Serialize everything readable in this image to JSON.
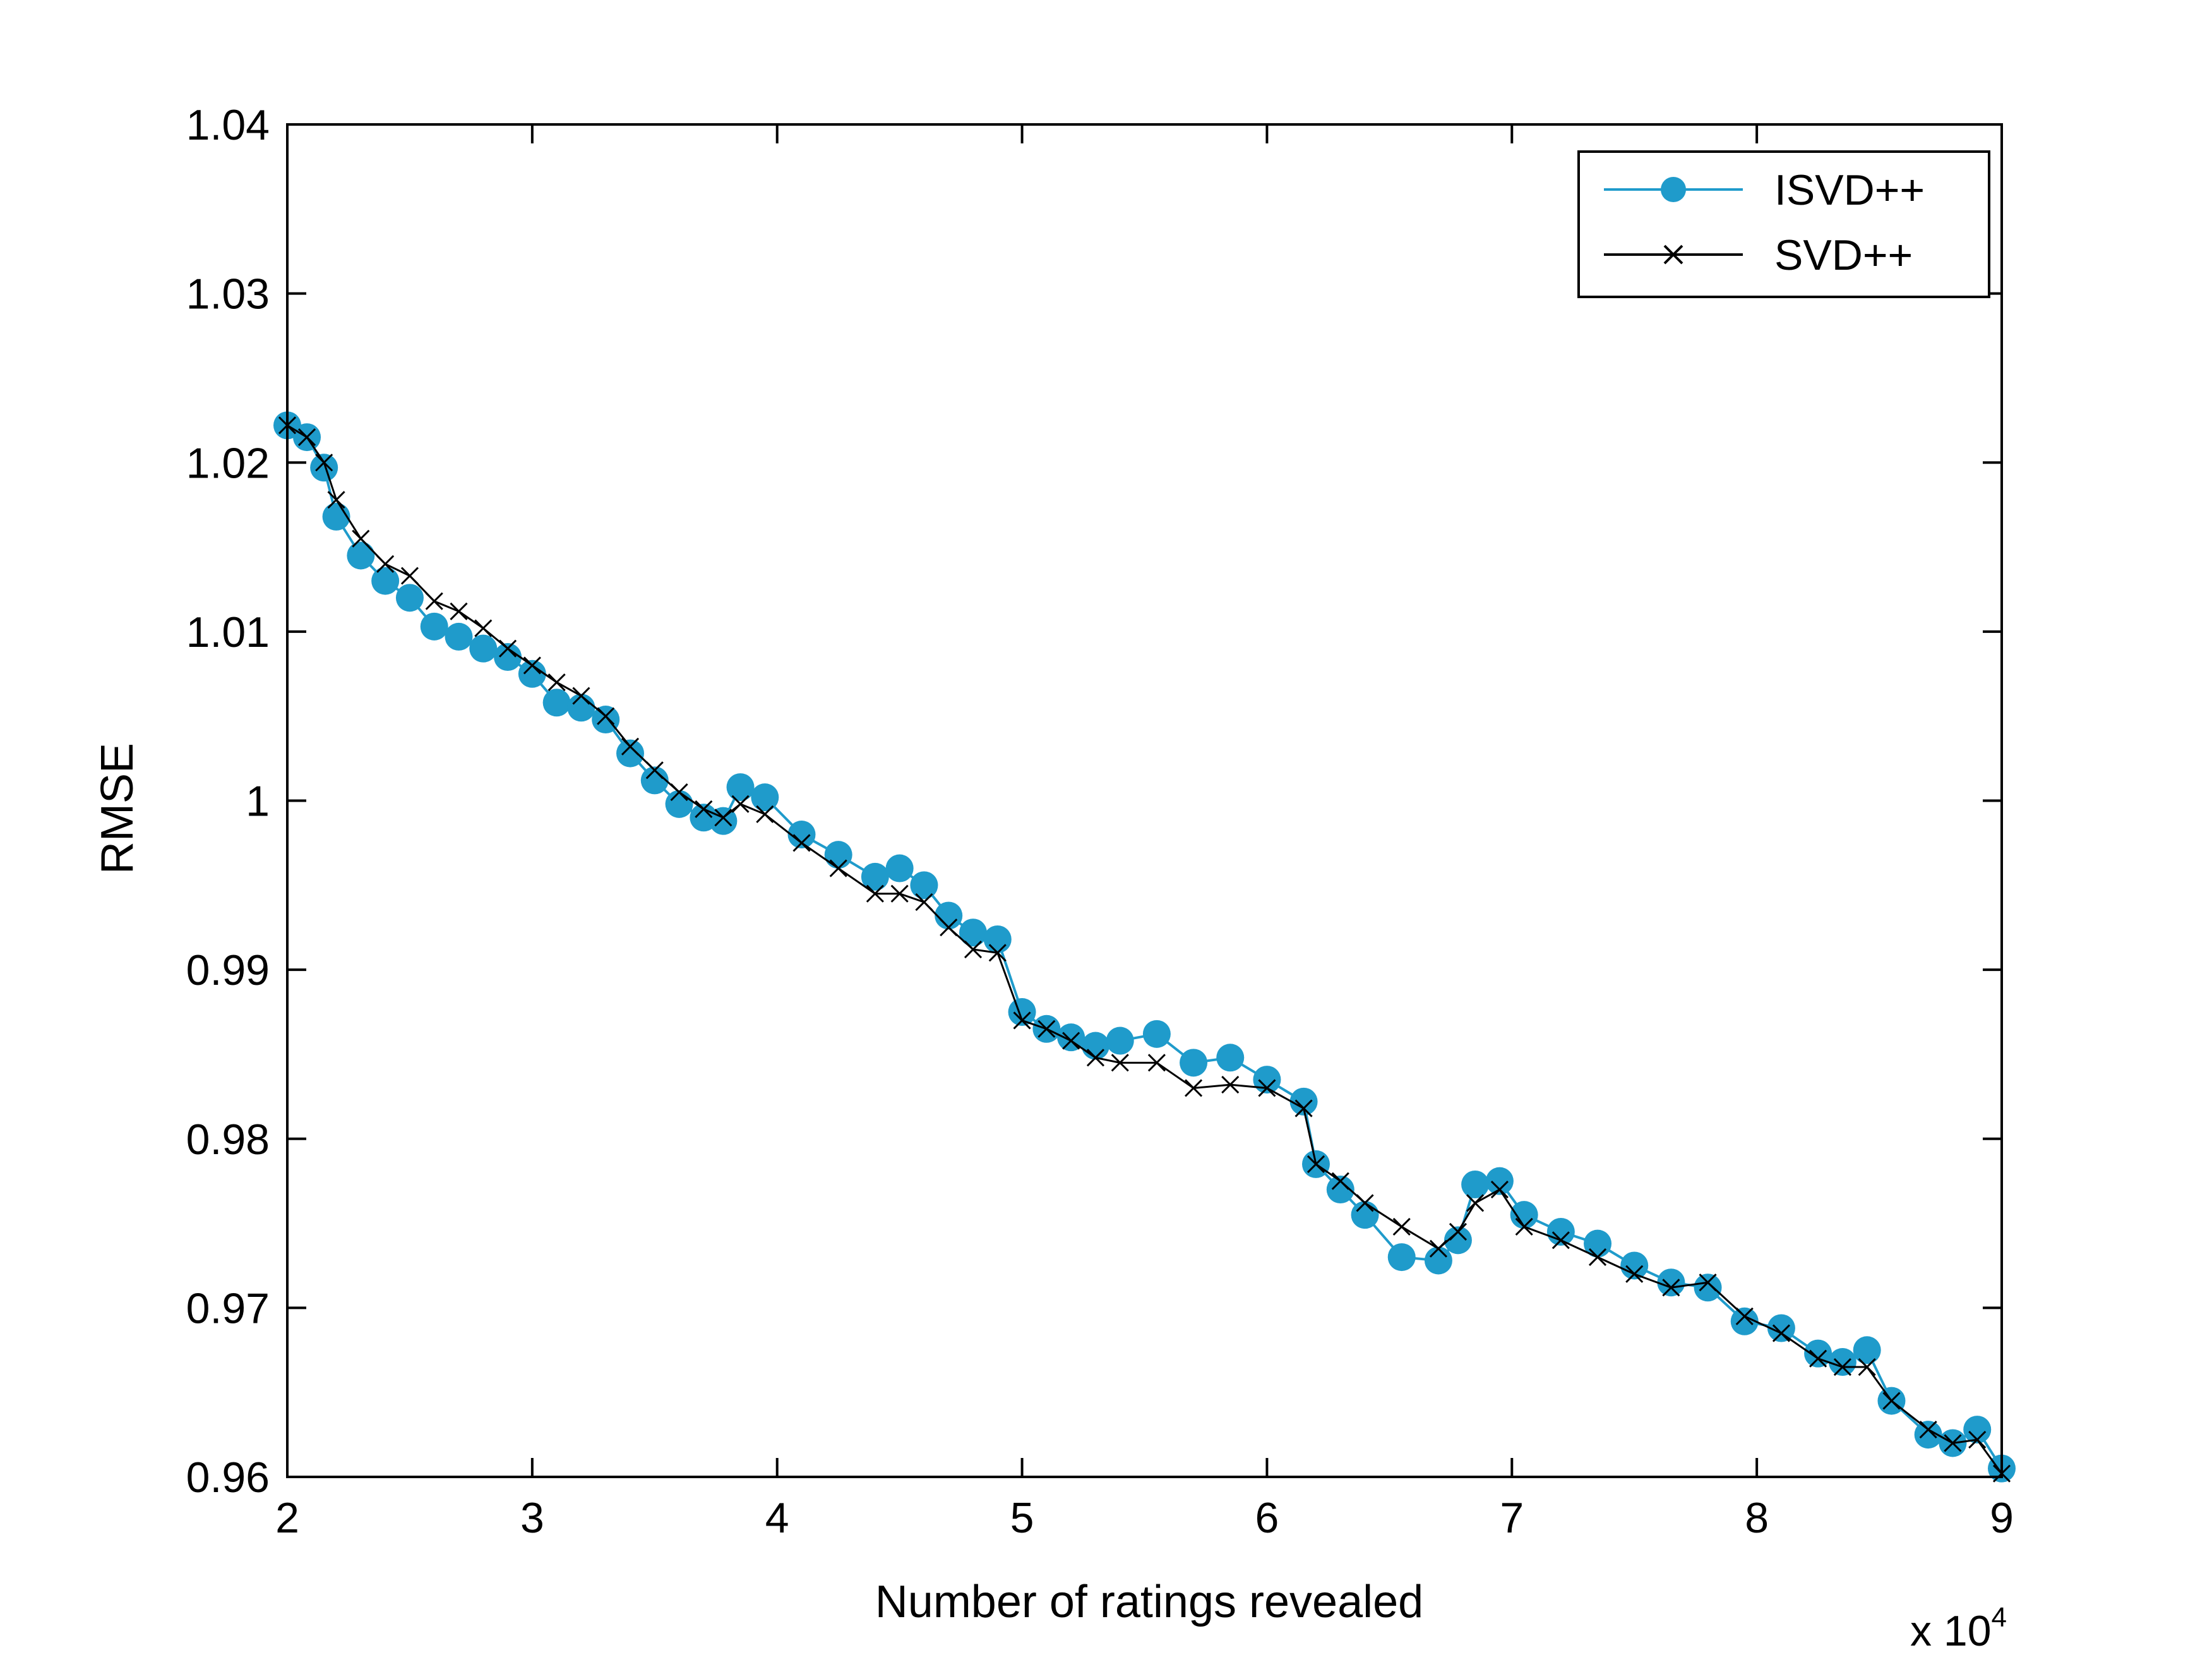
{
  "chart_data": {
    "type": "line",
    "xlabel": "Number of ratings revealed",
    "ylabel": "RMSE",
    "x_multiplier_label": "x 10",
    "x_multiplier_exponent": "4",
    "xlim": [
      2,
      9
    ],
    "ylim": [
      0.96,
      1.04
    ],
    "x_ticks": [
      "2",
      "3",
      "4",
      "5",
      "6",
      "7",
      "8",
      "9"
    ],
    "y_ticks": [
      "0.96",
      "0.97",
      "0.98",
      "0.99",
      "1",
      "1.01",
      "1.02",
      "1.03",
      "1.04"
    ],
    "grid": false,
    "legend_position": "top-right",
    "series": [
      {
        "name": "ISVD++",
        "color": "#1f9bcb",
        "marker": "circle",
        "x": [
          2.0,
          2.08,
          2.15,
          2.2,
          2.3,
          2.4,
          2.5,
          2.6,
          2.7,
          2.8,
          2.9,
          3.0,
          3.1,
          3.2,
          3.3,
          3.4,
          3.5,
          3.6,
          3.7,
          3.78,
          3.85,
          3.95,
          4.1,
          4.25,
          4.4,
          4.5,
          4.6,
          4.7,
          4.8,
          4.9,
          5.0,
          5.1,
          5.2,
          5.3,
          5.4,
          5.55,
          5.7,
          5.85,
          6.0,
          6.15,
          6.2,
          6.3,
          6.4,
          6.55,
          6.7,
          6.78,
          6.85,
          6.95,
          7.05,
          7.2,
          7.35,
          7.5,
          7.65,
          7.8,
          7.95,
          8.1,
          8.25,
          8.35,
          8.45,
          8.55,
          8.7,
          8.8,
          8.9,
          9.0
        ],
        "y": [
          1.0222,
          1.0215,
          1.0197,
          1.0168,
          1.0145,
          1.013,
          1.012,
          1.0103,
          1.0097,
          1.009,
          1.0085,
          1.0075,
          1.0058,
          1.0055,
          1.0048,
          1.0028,
          1.0012,
          0.9998,
          0.999,
          0.9988,
          1.0008,
          1.0002,
          0.998,
          0.9968,
          0.9955,
          0.996,
          0.995,
          0.9932,
          0.9922,
          0.9918,
          0.9875,
          0.9865,
          0.986,
          0.9855,
          0.9858,
          0.9862,
          0.9845,
          0.9848,
          0.9835,
          0.9822,
          0.9785,
          0.977,
          0.9755,
          0.973,
          0.9728,
          0.974,
          0.9773,
          0.9775,
          0.9755,
          0.9745,
          0.9738,
          0.9725,
          0.9715,
          0.9712,
          0.9692,
          0.9688,
          0.9673,
          0.9668,
          0.9675,
          0.9645,
          0.9625,
          0.962,
          0.9628,
          0.9605
        ]
      },
      {
        "name": "SVD++",
        "color": "#000000",
        "marker": "x",
        "x": [
          2.0,
          2.08,
          2.15,
          2.2,
          2.3,
          2.4,
          2.5,
          2.6,
          2.7,
          2.8,
          2.9,
          3.0,
          3.1,
          3.2,
          3.3,
          3.4,
          3.5,
          3.6,
          3.7,
          3.78,
          3.85,
          3.95,
          4.1,
          4.25,
          4.4,
          4.5,
          4.6,
          4.7,
          4.8,
          4.9,
          5.0,
          5.1,
          5.2,
          5.3,
          5.4,
          5.55,
          5.7,
          5.85,
          6.0,
          6.15,
          6.2,
          6.3,
          6.4,
          6.55,
          6.7,
          6.78,
          6.85,
          6.95,
          7.05,
          7.2,
          7.35,
          7.5,
          7.65,
          7.8,
          7.95,
          8.1,
          8.25,
          8.35,
          8.45,
          8.55,
          8.7,
          8.8,
          8.9,
          9.0
        ],
        "y": [
          1.0222,
          1.0215,
          1.02,
          1.0178,
          1.0155,
          1.014,
          1.0133,
          1.0118,
          1.0112,
          1.0102,
          1.009,
          1.008,
          1.007,
          1.0062,
          1.005,
          1.0032,
          1.0018,
          1.0005,
          0.9995,
          0.999,
          0.9998,
          0.9992,
          0.9975,
          0.996,
          0.9945,
          0.9945,
          0.994,
          0.9925,
          0.9912,
          0.991,
          0.987,
          0.9865,
          0.9858,
          0.9848,
          0.9845,
          0.9845,
          0.983,
          0.9832,
          0.983,
          0.9818,
          0.9785,
          0.9775,
          0.9762,
          0.9748,
          0.9735,
          0.9745,
          0.9762,
          0.977,
          0.9748,
          0.974,
          0.973,
          0.972,
          0.9712,
          0.9715,
          0.9695,
          0.9685,
          0.967,
          0.9665,
          0.9665,
          0.9645,
          0.9628,
          0.962,
          0.9622,
          0.9602
        ]
      }
    ]
  }
}
